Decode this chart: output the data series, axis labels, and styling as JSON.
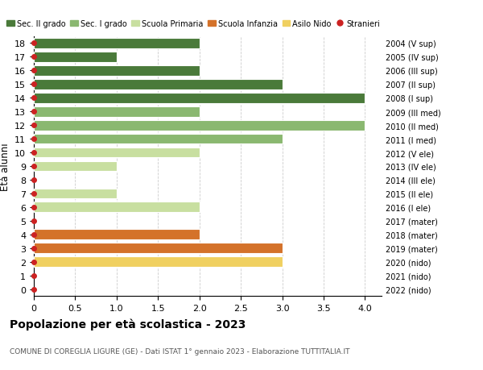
{
  "ages": [
    0,
    1,
    2,
    3,
    4,
    5,
    6,
    7,
    8,
    9,
    10,
    11,
    12,
    13,
    14,
    15,
    16,
    17,
    18
  ],
  "years": [
    "2022 (nido)",
    "2021 (nido)",
    "2020 (nido)",
    "2019 (mater)",
    "2018 (mater)",
    "2017 (mater)",
    "2016 (I ele)",
    "2015 (II ele)",
    "2014 (III ele)",
    "2013 (IV ele)",
    "2012 (V ele)",
    "2011 (I med)",
    "2010 (II med)",
    "2009 (III med)",
    "2008 (I sup)",
    "2007 (II sup)",
    "2006 (III sup)",
    "2005 (IV sup)",
    "2004 (V sup)"
  ],
  "values": [
    0,
    0,
    3,
    3,
    2,
    0,
    2,
    1,
    0,
    1,
    2,
    3,
    4,
    2,
    4,
    3,
    2,
    1,
    2
  ],
  "colors": [
    "#f0d060",
    "#f0d060",
    "#f0d060",
    "#d4722a",
    "#d4722a",
    "#d4722a",
    "#c8dfa0",
    "#c8dfa0",
    "#c8dfa0",
    "#c8dfa0",
    "#c8dfa0",
    "#8ab870",
    "#8ab870",
    "#8ab870",
    "#4a7a3a",
    "#4a7a3a",
    "#4a7a3a",
    "#4a7a3a",
    "#4a7a3a"
  ],
  "legend_labels": [
    "Sec. II grado",
    "Sec. I grado",
    "Scuola Primaria",
    "Scuola Infanzia",
    "Asilo Nido",
    "Stranieri"
  ],
  "legend_colors": [
    "#4a7a3a",
    "#8ab870",
    "#c8dfa0",
    "#d4722a",
    "#f0d060",
    "#cc2222"
  ],
  "title": "Popolazione per età scolastica - 2023",
  "subtitle": "COMUNE DI COREGLIA LIGURE (GE) - Dati ISTAT 1° gennaio 2023 - Elaborazione TUTTITALIA.IT",
  "ylabel": "Età alunni",
  "xlim": [
    0,
    4.2
  ],
  "ylim": [
    -0.5,
    18.5
  ],
  "xticks": [
    0,
    0.5,
    1.0,
    1.5,
    2.0,
    2.5,
    3.0,
    3.5,
    4.0
  ],
  "xtick_labels": [
    "0",
    "0.5",
    "1.0",
    "1.5",
    "2.0",
    "2.5",
    "3.0",
    "3.5",
    "4.0"
  ],
  "bg_color": "#ffffff",
  "grid_color": "#cccccc",
  "bar_height": 0.75,
  "dot_color": "#cc2222",
  "dot_size": 4
}
